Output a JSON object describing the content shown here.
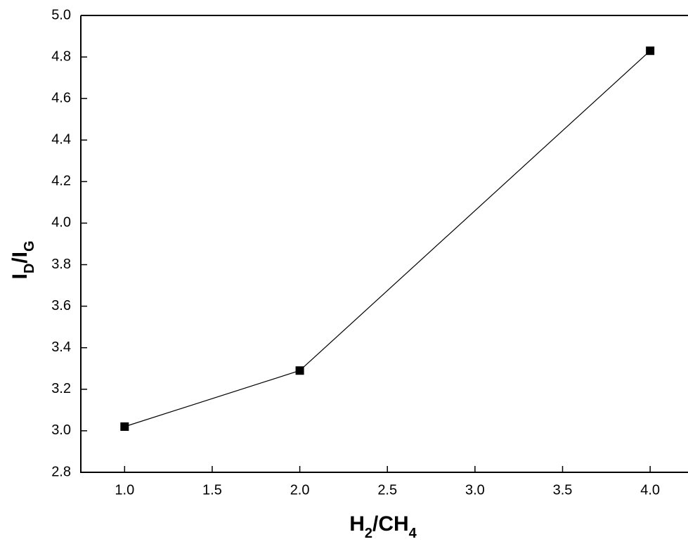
{
  "chart_data": {
    "type": "line",
    "xlabel": [
      {
        "text": "H"
      },
      {
        "text": "2",
        "sub": true
      },
      {
        "text": "/CH"
      },
      {
        "text": "4",
        "sub": true
      }
    ],
    "ylabel": [
      {
        "text": "I"
      },
      {
        "text": "D",
        "sub": true
      },
      {
        "text": "/I"
      },
      {
        "text": "G",
        "sub": true
      }
    ],
    "x": [
      1,
      2,
      4
    ],
    "series": [
      {
        "color": "#000000",
        "marker": "square",
        "values": [
          3.02,
          3.29,
          4.83
        ]
      }
    ],
    "xlim": [
      0.75,
      4.2
    ],
    "ylim": [
      2.8,
      5.0
    ],
    "xticks": [
      {
        "value": 1,
        "label": "1.0"
      },
      1.5,
      {
        "value": 2,
        "label": "2.0"
      },
      2.5,
      {
        "value": 3,
        "label": "3.0"
      },
      3.5,
      {
        "value": 4,
        "label": "4.0"
      }
    ],
    "yticks": [
      2.8,
      {
        "value": 3,
        "label": "3.0"
      },
      3.2,
      3.4,
      3.6,
      3.8,
      {
        "value": 4,
        "label": "4.0"
      },
      4.2,
      4.4,
      4.6,
      4.8,
      {
        "value": 5,
        "label": "5.0"
      }
    ],
    "grid": false
  }
}
